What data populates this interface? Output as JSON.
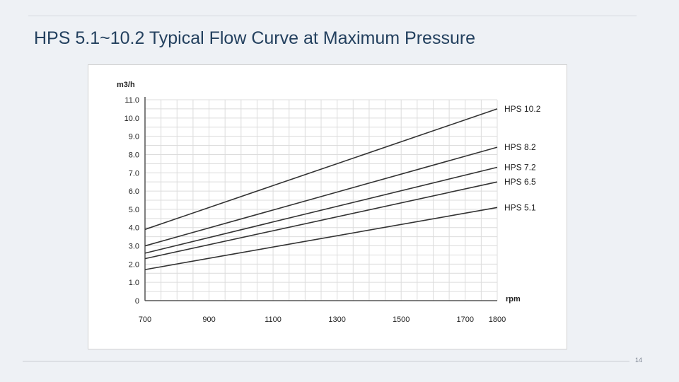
{
  "slide": {
    "title": "HPS 5.1~10.2 Typical Flow Curve at Maximum Pressure",
    "page_number": "14"
  },
  "colors": {
    "background": "#eef1f5",
    "title": "#24415f",
    "grid": "#dcdcdc",
    "line": "#333333"
  },
  "chart_data": {
    "type": "line",
    "title": "",
    "ylabel": "m3/h",
    "xlabel": "rpm",
    "xlim": [
      700,
      1800
    ],
    "ylim": [
      0,
      11
    ],
    "grid": true,
    "x_ticks": [
      "700",
      "900",
      "1100",
      "1300",
      "1500",
      "1700",
      "1800"
    ],
    "y_ticks": [
      "0",
      "1.0",
      "2.0",
      "3.0",
      "4.0",
      "5.0",
      "6.0",
      "7.0",
      "8.0",
      "9.0",
      "10.0",
      "11.0"
    ],
    "x": [
      700,
      1800
    ],
    "series": [
      {
        "name": "HPS 10.2",
        "values": [
          3.9,
          10.5
        ]
      },
      {
        "name": "HPS 8.2",
        "values": [
          3.0,
          8.4
        ]
      },
      {
        "name": "HPS 7.2",
        "values": [
          2.6,
          7.3
        ]
      },
      {
        "name": "HPS 6.5",
        "values": [
          2.3,
          6.5
        ]
      },
      {
        "name": "HPS 5.1",
        "values": [
          1.7,
          5.1
        ]
      }
    ]
  }
}
